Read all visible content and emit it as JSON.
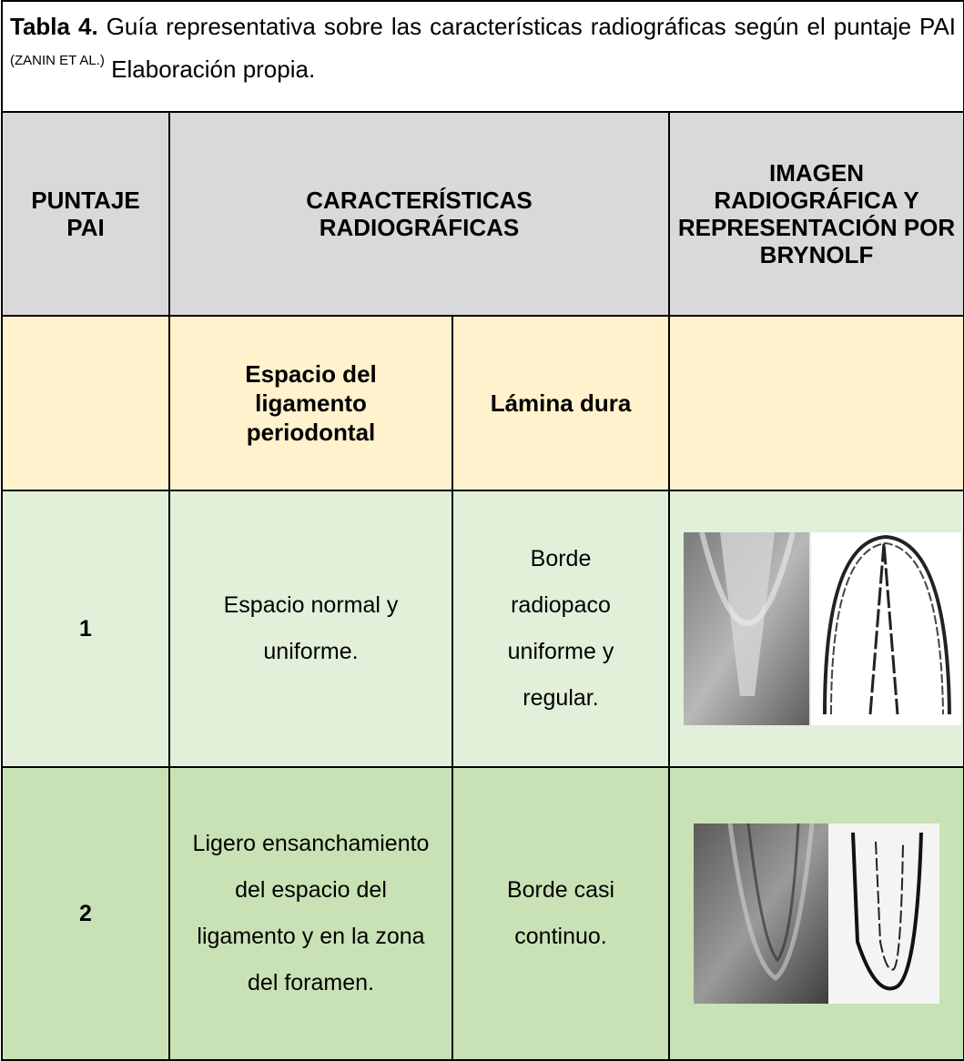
{
  "caption": {
    "label": "Tabla 4.",
    "text": "Guía representativa sobre las características radiográficas según el puntaje PAI",
    "superscript": "(ZANIN ET AL.)",
    "note": "Elaboración propia."
  },
  "table": {
    "header": [
      "PUNTAJE PAI",
      "CARACTERÍSTICAS RADIOGRÁFICAS",
      "IMAGEN RADIOGRÁFICA Y REPRESENTACIÓN POR BRYNOLF"
    ],
    "subheader": [
      "Espacio del ligamento periodontal",
      "Lámina dura"
    ],
    "rows": [
      [
        "1",
        "Espacio normal y uniforme.",
        "Borde radiopaco uniforme y regular."
      ],
      [
        "2",
        "Ligero ensanchamiento del espacio del ligamento y en la zona del foramen.",
        "Borde casi continuo."
      ]
    ]
  }
}
